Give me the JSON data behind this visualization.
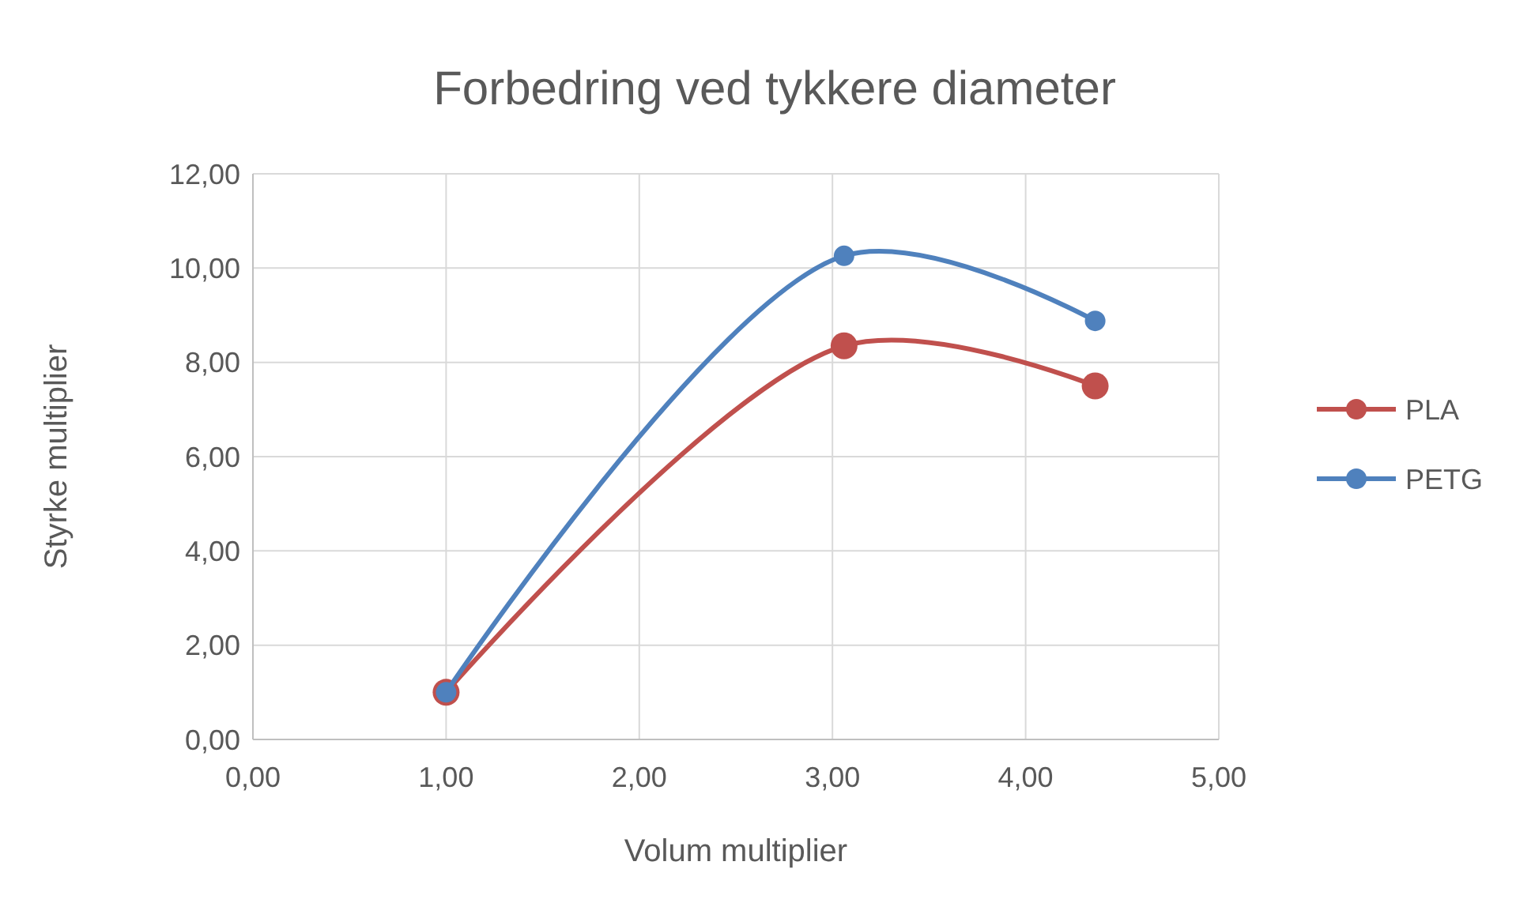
{
  "chart_data": {
    "type": "line",
    "title": "Forbedring ved tykkere diameter",
    "xlabel": "Volum multiplier",
    "ylabel": "Styrke multiplier",
    "x": [
      1,
      3.06,
      4.36
    ],
    "series": [
      {
        "name": "PLA",
        "color": "#c0504d",
        "values": [
          1,
          8.35,
          7.5
        ]
      },
      {
        "name": "PETG",
        "color": "#4f81bd",
        "values": [
          1,
          10.26,
          8.88
        ]
      }
    ],
    "xlim": [
      0,
      5
    ],
    "xticks": [
      {
        "value": 0,
        "label": "0,00"
      },
      {
        "value": 1,
        "label": "1,00"
      },
      {
        "value": 2,
        "label": "2,00"
      },
      {
        "value": 3,
        "label": "3,00"
      },
      {
        "value": 4,
        "label": "4,00"
      },
      {
        "value": 5,
        "label": "5,00"
      }
    ],
    "ylim": [
      0,
      12
    ],
    "yticks": [
      {
        "value": 0,
        "label": "0,00"
      },
      {
        "value": 2,
        "label": "2,00"
      },
      {
        "value": 4,
        "label": "4,00"
      },
      {
        "value": 6,
        "label": "6,00"
      },
      {
        "value": 8,
        "label": "8,00"
      },
      {
        "value": 10,
        "label": "10,00"
      },
      {
        "value": 12,
        "label": "12,00"
      }
    ],
    "grid": true,
    "legend": "right",
    "marker": "circle",
    "line_style": "solid"
  }
}
